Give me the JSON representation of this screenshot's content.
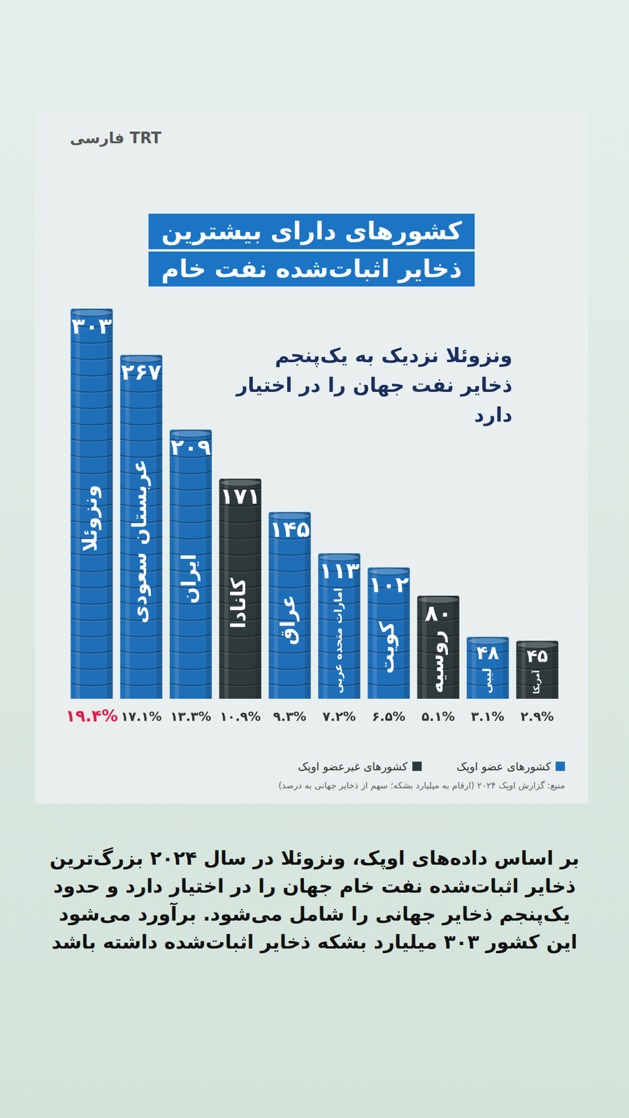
{
  "chart_data": {
    "type": "bar",
    "title": "کشورهای دارای بیشترین ذخایر اثبات‌شده نفت خام",
    "subtitle": "ونزوئلا نزدیک به یک‌پنجم ذخایر نفت جهان را در اختیار دارد",
    "categories": [
      "ونزوئلا",
      "عربستان سعودی",
      "ایران",
      "کانادا",
      "عراق",
      "امارات متحده عربی",
      "کویت",
      "روسیه",
      "لیبی",
      "آمریکا"
    ],
    "values": [
      303,
      267,
      209,
      171,
      145,
      113,
      102,
      80,
      48,
      45
    ],
    "value_labels": [
      "۳۰۳",
      "۲۶۷",
      "۲۰۹",
      "۱۷۱",
      "۱۴۵",
      "۱۱۳",
      "۱۰۲",
      "۸۰",
      "۴۸",
      "۴۵"
    ],
    "shares": [
      19.4,
      17.1,
      13.3,
      10.9,
      9.3,
      7.2,
      6.5,
      5.1,
      3.1,
      2.9
    ],
    "share_labels": [
      "۱۹.۴%",
      "۱۷.۱%",
      "۱۳.۳%",
      "۱۰.۹%",
      "۹.۳%",
      "۷.۲%",
      "۶.۵%",
      "۵.۱%",
      "۳.۱%",
      "۲.۹%"
    ],
    "colors": [
      "#1f6fb8",
      "#1f6fb8",
      "#1f6fb8",
      "#2e393b",
      "#1f6fb8",
      "#1f6fb8",
      "#1f6fb8",
      "#2e393b",
      "#1f6fb8",
      "#2e393b"
    ],
    "groups": [
      {
        "name": "کشورهای عضو اوپک",
        "color": "#1f6fb8"
      },
      {
        "name": "کشورهای غیرعضو اوپک",
        "color": "#2e393b"
      }
    ],
    "legend": "bottom",
    "ylim": [
      0,
      303
    ],
    "grid": false,
    "tick_labels": false,
    "data_labels": true,
    "source": "منبع: گزارش اوپک ۲۰۲۴ (ارقام به میلیارد بشکه؛ سهم از ذخایر جهانی به درصد)"
  },
  "page": {
    "logo": "TRT فارسی",
    "caption": "بر اساس داده‌های اوپک، ونزوئلا در سال ۲۰۲۴ بزرگ‌ترین ذخایر اثبات‌شده نفت خام جهان را در اختیار دارد و حدود یک‌پنجم ذخایر جهانی را شامل می‌شود. برآورد می‌شود این کشور ۳۰۳ میلیارد بشکه ذخایر اثبات‌شده داشته باشد"
  }
}
